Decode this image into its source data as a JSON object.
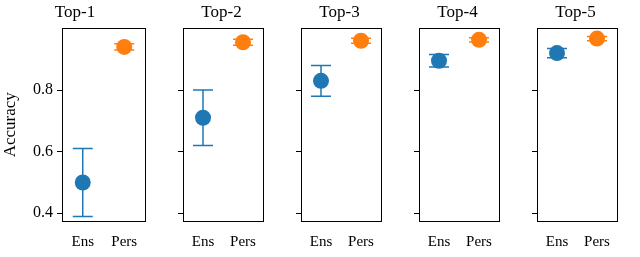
{
  "chart_data": [
    {
      "type": "scatter",
      "title": "Top-1",
      "y_label": "Accuracy",
      "categories": [
        "Ens",
        "Pers"
      ],
      "values": [
        0.5,
        0.94
      ],
      "error_low": [
        0.39,
        0.93
      ],
      "error_high": [
        0.61,
        0.95
      ],
      "colors": [
        "#1f77b4",
        "#ff7f0e"
      ],
      "ylim": [
        0.375,
        1.0
      ],
      "yticks": [
        0.4,
        0.6,
        0.8
      ],
      "grid": false
    },
    {
      "type": "scatter",
      "title": "Top-2",
      "categories": [
        "Ens",
        "Pers"
      ],
      "values": [
        0.71,
        0.955
      ],
      "error_low": [
        0.62,
        0.945
      ],
      "error_high": [
        0.8,
        0.965
      ],
      "colors": [
        "#1f77b4",
        "#ff7f0e"
      ],
      "ylim": [
        0.375,
        1.0
      ],
      "yticks": [
        0.4,
        0.6,
        0.8
      ],
      "grid": false,
      "tick_labels": "x"
    },
    {
      "type": "scatter",
      "title": "Top-3",
      "categories": [
        "Ens",
        "Pers"
      ],
      "values": [
        0.83,
        0.96
      ],
      "error_low": [
        0.78,
        0.952
      ],
      "error_high": [
        0.88,
        0.968
      ],
      "colors": [
        "#1f77b4",
        "#ff7f0e"
      ],
      "ylim": [
        0.375,
        1.0
      ],
      "yticks": [
        0.4,
        0.6,
        0.8
      ],
      "grid": false,
      "tick_labels": "x"
    },
    {
      "type": "scatter",
      "title": "Top-4",
      "categories": [
        "Ens",
        "Pers"
      ],
      "values": [
        0.895,
        0.963
      ],
      "error_low": [
        0.875,
        0.956
      ],
      "error_high": [
        0.915,
        0.97
      ],
      "colors": [
        "#1f77b4",
        "#ff7f0e"
      ],
      "ylim": [
        0.375,
        1.0
      ],
      "yticks": [
        0.4,
        0.6,
        0.8
      ],
      "grid": false,
      "tick_labels": "x"
    },
    {
      "type": "scatter",
      "title": "Top-5",
      "categories": [
        "Ens",
        "Pers"
      ],
      "values": [
        0.92,
        0.967
      ],
      "error_low": [
        0.905,
        0.96
      ],
      "error_high": [
        0.935,
        0.974
      ],
      "colors": [
        "#1f77b4",
        "#ff7f0e"
      ],
      "ylim": [
        0.375,
        1.0
      ],
      "yticks": [
        0.4,
        0.6,
        0.8
      ],
      "grid": false,
      "tick_labels": "x"
    }
  ]
}
